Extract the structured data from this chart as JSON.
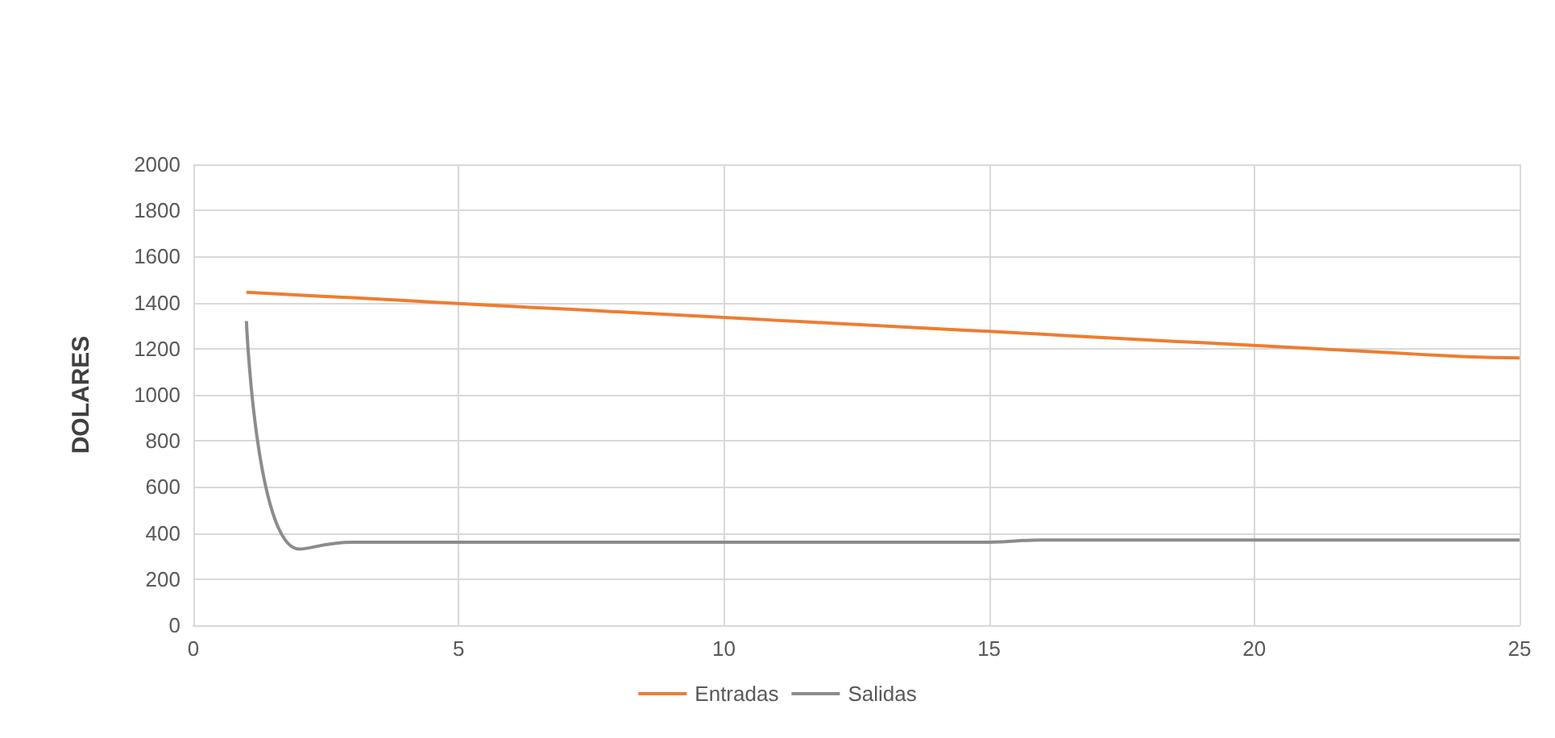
{
  "chart_data": {
    "type": "line",
    "ylabel": "DOLARES",
    "x": [
      1,
      2,
      3,
      4,
      5,
      6,
      7,
      8,
      9,
      10,
      11,
      12,
      13,
      14,
      15,
      16,
      17,
      18,
      19,
      20,
      21,
      22,
      23,
      24,
      25
    ],
    "series": [
      {
        "name": "Entradas",
        "color": "#ed7d31",
        "values": [
          1445,
          1433,
          1421,
          1409,
          1396,
          1384,
          1372,
          1360,
          1348,
          1336,
          1323,
          1311,
          1299,
          1287,
          1275,
          1263,
          1250,
          1238,
          1226,
          1214,
          1202,
          1190,
          1177,
          1165,
          1160
        ]
      },
      {
        "name": "Salidas",
        "color": "#8c8c8c",
        "values": [
          1320,
          330,
          360,
          360,
          360,
          360,
          360,
          360,
          360,
          360,
          360,
          360,
          360,
          360,
          360,
          370,
          370,
          370,
          370,
          370,
          370,
          370,
          370,
          370,
          370
        ]
      }
    ],
    "xlim": [
      0,
      25
    ],
    "xticks": [
      0,
      5,
      10,
      15,
      20,
      25
    ],
    "ylim": [
      0,
      2000
    ],
    "yticks": [
      0,
      200,
      400,
      600,
      800,
      1000,
      1200,
      1400,
      1600,
      1800,
      2000
    ],
    "grid": true,
    "legend": "bottom",
    "marker": "none",
    "line_style": "solid"
  }
}
